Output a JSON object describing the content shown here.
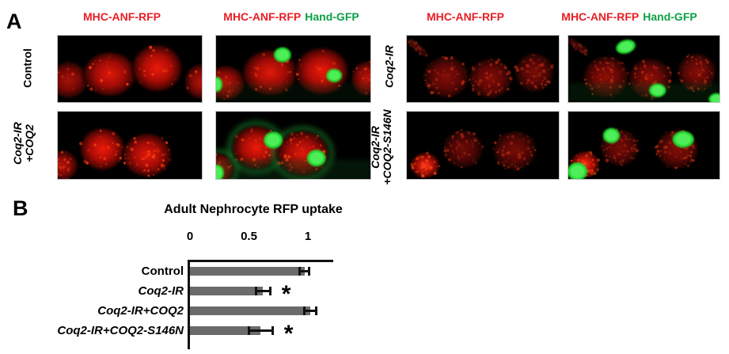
{
  "panelA": {
    "label": "A",
    "col_headers": [
      {
        "rfp": "MHC-ANF-RFP",
        "gfp": ""
      },
      {
        "rfp": "MHC-ANF-RFP",
        "gfp": "Hand-GFP"
      },
      {
        "rfp": "MHC-ANF-RFP",
        "gfp": ""
      },
      {
        "rfp": "MHC-ANF-RFP",
        "gfp": "Hand-GFP"
      }
    ],
    "row_labels": [
      {
        "line1": "Control",
        "line2": ""
      },
      {
        "line1": "Coq2-IR",
        "line2": "+COQ2"
      },
      {
        "line1": "Coq2-IR",
        "line2": ""
      },
      {
        "line1": "Coq2-IR",
        "line2": "+COQ2-S146N"
      }
    ],
    "rfp_text_color": "#e81e25",
    "gfp_text_color": "#0b9f45"
  },
  "panelB": {
    "label": "B"
  },
  "chart_data": {
    "type": "bar",
    "orientation": "horizontal",
    "title": "Adult Nephrocyte RFP uptake",
    "categories": [
      "Control",
      "Coq2-IR",
      "Coq2-IR+COQ2",
      "Coq2-IR+COQ2-S146N"
    ],
    "values": [
      0.97,
      0.62,
      1.02,
      0.6
    ],
    "errors": [
      0.05,
      0.07,
      0.06,
      0.11
    ],
    "significance": [
      "",
      "*",
      "",
      "*"
    ],
    "ticks": [
      0,
      0.5,
      1
    ],
    "xlim": [
      0,
      1.19
    ],
    "grid": false,
    "bar_color": "#6b6b6b",
    "axis_color": "#111111",
    "error_bar_color": "#111111"
  }
}
